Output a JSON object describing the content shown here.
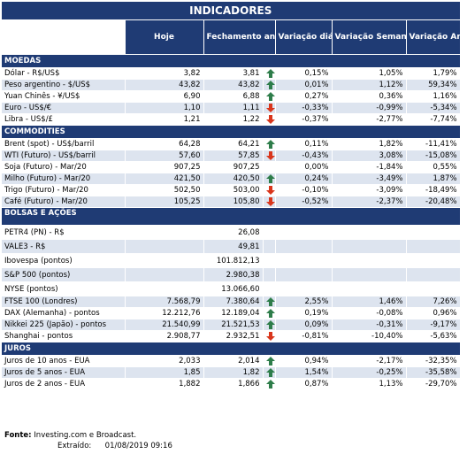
{
  "title": "INDICADORES",
  "headers": [
    "Hoje",
    "Fechamento anterior",
    "Variação diária (%)",
    "Variação Semanal (%)",
    "Variação Anual (%)"
  ],
  "colors": {
    "header_bg": "#1f3b74",
    "alt_row": "#dde4ef",
    "up_arrow": "#2e7d4a",
    "down_arrow": "#d9361c"
  },
  "sections": [
    {
      "name": "MOEDAS",
      "rows": [
        {
          "name": "Dólar - R$/US$",
          "hoje": "3,82",
          "fech": "3,81",
          "arrow": "up",
          "diaria": "0,15%",
          "semanal": "1,05%",
          "anual": "1,79%"
        },
        {
          "name": "Peso argentino - $/US$",
          "hoje": "43,82",
          "fech": "43,82",
          "arrow": "up",
          "diaria": "0,01%",
          "semanal": "1,12%",
          "anual": "59,34%"
        },
        {
          "name": "Yuan Chinês - ¥/US$",
          "hoje": "6,90",
          "fech": "6,88",
          "arrow": "up",
          "diaria": "0,27%",
          "semanal": "0,36%",
          "anual": "1,16%"
        },
        {
          "name": "Euro - US$/€",
          "hoje": "1,10",
          "fech": "1,11",
          "arrow": "down",
          "diaria": "-0,33%",
          "semanal": "-0,99%",
          "anual": "-5,34%"
        },
        {
          "name": "Libra - US$/£",
          "hoje": "1,21",
          "fech": "1,22",
          "arrow": "down",
          "diaria": "-0,37%",
          "semanal": "-2,77%",
          "anual": "-7,74%"
        }
      ]
    },
    {
      "name": "COMMODITIES",
      "rows": [
        {
          "name": "Brent (spot) - US$/barril",
          "hoje": "64,28",
          "fech": "64,21",
          "arrow": "up",
          "diaria": "0,11%",
          "semanal": "1,82%",
          "anual": "-11,41%"
        },
        {
          "name": "WTI (Futuro) - US$/barril",
          "hoje": "57,60",
          "fech": "57,85",
          "arrow": "down",
          "diaria": "-0,43%",
          "semanal": "3,08%",
          "anual": "-15,08%"
        },
        {
          "name": "Soja (Futuro) - Mar/20",
          "hoje": "907,25",
          "fech": "907,25",
          "arrow": "",
          "diaria": "0,00%",
          "semanal": "-1,84%",
          "anual": "0,55%"
        },
        {
          "name": "Milho (Futuro) - Mar/20",
          "hoje": "421,50",
          "fech": "420,50",
          "arrow": "up",
          "diaria": "0,24%",
          "semanal": "-3,49%",
          "anual": "1,87%"
        },
        {
          "name": "Trigo (Futuro) - Mar/20",
          "hoje": "502,50",
          "fech": "503,00",
          "arrow": "down",
          "diaria": "-0,10%",
          "semanal": "-3,09%",
          "anual": "-18,49%"
        },
        {
          "name": "Café (Futuro) - Mar/20",
          "hoje": "105,25",
          "fech": "105,80",
          "arrow": "down",
          "diaria": "-0,52%",
          "semanal": "-2,37%",
          "anual": "-20,48%"
        }
      ]
    },
    {
      "name": "BOLSAS E AÇÕES",
      "rows": [
        {
          "name": "PETR4 (PN) - R$",
          "hoje": "",
          "fech": "26,08",
          "arrow": "",
          "diaria": "",
          "semanal": "",
          "anual": ""
        },
        {
          "name": "VALE3 - R$",
          "hoje": "",
          "fech": "49,81",
          "arrow": "",
          "diaria": "",
          "semanal": "",
          "anual": ""
        },
        {
          "name": "Ibovespa (pontos)",
          "hoje": "",
          "fech": "101.812,13",
          "arrow": "",
          "diaria": "",
          "semanal": "",
          "anual": ""
        },
        {
          "name": "S&P 500 (pontos)",
          "hoje": "",
          "fech": "2.980,38",
          "arrow": "",
          "diaria": "",
          "semanal": "",
          "anual": ""
        },
        {
          "name": "NYSE (pontos)",
          "hoje": "",
          "fech": "13.066,60",
          "arrow": "",
          "diaria": "",
          "semanal": "",
          "anual": ""
        },
        {
          "name": "FTSE 100 (Londres)",
          "hoje": "7.568,79",
          "fech": "7.380,64",
          "arrow": "up",
          "diaria": "2,55%",
          "semanal": "1,46%",
          "anual": "7,26%"
        },
        {
          "name": "DAX (Alemanha) - pontos",
          "hoje": "12.212,76",
          "fech": "12.189,04",
          "arrow": "up",
          "diaria": "0,19%",
          "semanal": "-0,08%",
          "anual": "0,96%"
        },
        {
          "name": "Nikkei 225 (Japão) - pontos",
          "hoje": "21.540,99",
          "fech": "21.521,53",
          "arrow": "up",
          "diaria": "0,09%",
          "semanal": "-0,31%",
          "anual": "-9,17%"
        },
        {
          "name": "Shanghai - pontos",
          "hoje": "2.908,77",
          "fech": "2.932,51",
          "arrow": "down",
          "diaria": "-0,81%",
          "semanal": "-10,40%",
          "anual": "-5,63%"
        }
      ]
    },
    {
      "name": "JUROS",
      "rows": [
        {
          "name": "Juros de 10 anos - EUA",
          "hoje": "2,033",
          "fech": "2,014",
          "arrow": "up",
          "diaria": "0,94%",
          "semanal": "-2,17%",
          "anual": "-32,35%"
        },
        {
          "name": "Juros de 5 anos - EUA",
          "hoje": "1,85",
          "fech": "1,82",
          "arrow": "up",
          "diaria": "1,54%",
          "semanal": "-0,25%",
          "anual": "-35,58%"
        },
        {
          "name": "Juros de 2 anos - EUA",
          "hoje": "1,882",
          "fech": "1,866",
          "arrow": "up",
          "diaria": "0,87%",
          "semanal": "1,13%",
          "anual": "-29,70%"
        }
      ]
    }
  ],
  "footer": {
    "fonte_label": "Fonte:",
    "fonte_text": "Investing.com e Broadcast.",
    "extraido_label": "Extraído:",
    "extraido_value": "01/08/2019 09:16"
  }
}
